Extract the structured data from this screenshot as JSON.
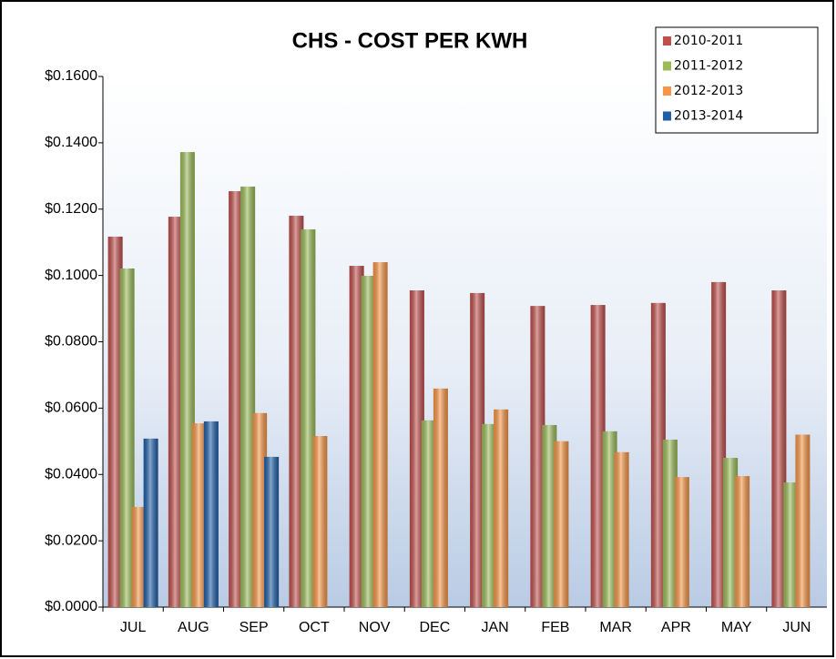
{
  "chart_data": {
    "type": "bar",
    "title": "CHS - COST PER KWH",
    "categories": [
      "JUL",
      "AUG",
      "SEP",
      "OCT",
      "NOV",
      "DEC",
      "JAN",
      "FEB",
      "MAR",
      "APR",
      "MAY",
      "JUN"
    ],
    "series": [
      {
        "name": "2010-2011",
        "color": "#c0504d",
        "values": [
          0.1117,
          0.1177,
          0.1254,
          0.118,
          0.1029,
          0.0955,
          0.0947,
          0.0908,
          0.0911,
          0.0917,
          0.098,
          0.0955
        ]
      },
      {
        "name": "2011-2012",
        "color": "#9bbb59",
        "values": [
          0.1021,
          0.1372,
          0.1268,
          0.1139,
          0.0999,
          0.0563,
          0.0552,
          0.0549,
          0.053,
          0.0505,
          0.045,
          0.0376
        ]
      },
      {
        "name": "2012-2013",
        "color": "#f79646",
        "values": [
          0.0302,
          0.0554,
          0.0585,
          0.0516,
          0.104,
          0.0659,
          0.0596,
          0.05,
          0.0467,
          0.0392,
          0.0395,
          0.052
        ]
      },
      {
        "name": "2013-2014",
        "color": "#1f5fa8",
        "values": [
          0.0508,
          0.056,
          0.0453,
          null,
          null,
          null,
          null,
          null,
          null,
          null,
          null,
          null
        ]
      }
    ],
    "ylim": [
      0,
      0.16
    ],
    "yticks": [
      {
        "value": 0,
        "label": "$0.0000"
      },
      {
        "value": 0.02,
        "label": "$0.0200"
      },
      {
        "value": 0.04,
        "label": "$0.0400"
      },
      {
        "value": 0.06,
        "label": "$0.0600"
      },
      {
        "value": 0.08,
        "label": "$0.0800"
      },
      {
        "value": 0.1,
        "label": "$0.1000"
      },
      {
        "value": 0.12,
        "label": "$0.1200"
      },
      {
        "value": 0.14,
        "label": "$0.1400"
      },
      {
        "value": 0.16,
        "label": "$0.1600"
      }
    ],
    "legend": "top-right"
  }
}
